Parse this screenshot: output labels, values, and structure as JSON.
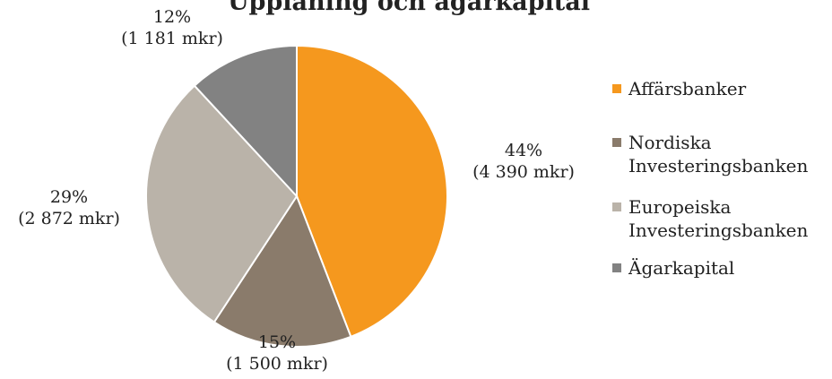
{
  "chart_data": {
    "type": "pie",
    "title": "Upplåning och ägarkapital",
    "start_angle_deg": 0,
    "direction": "clockwise",
    "legend_position": "right",
    "slices": [
      {
        "label": [
          "Affärsbanker"
        ],
        "percent_label": "44%",
        "amount_label": "(4 390 mkr)",
        "value": 4390,
        "color": "#f5981e"
      },
      {
        "label": [
          "Nordiska",
          "Investeringsbanken"
        ],
        "percent_label": "15%",
        "amount_label": "(1 500 mkr)",
        "value": 1500,
        "color": "#8a7b6b"
      },
      {
        "label": [
          "Europeiska",
          "Investeringsbanken"
        ],
        "percent_label": "29%",
        "amount_label": "(2 872 mkr)",
        "value": 2872,
        "color": "#bab3a9"
      },
      {
        "label": [
          "Ägarkapital"
        ],
        "percent_label": "12%",
        "amount_label": "(1 181 mkr)",
        "value": 1181,
        "color": "#828282"
      }
    ]
  }
}
